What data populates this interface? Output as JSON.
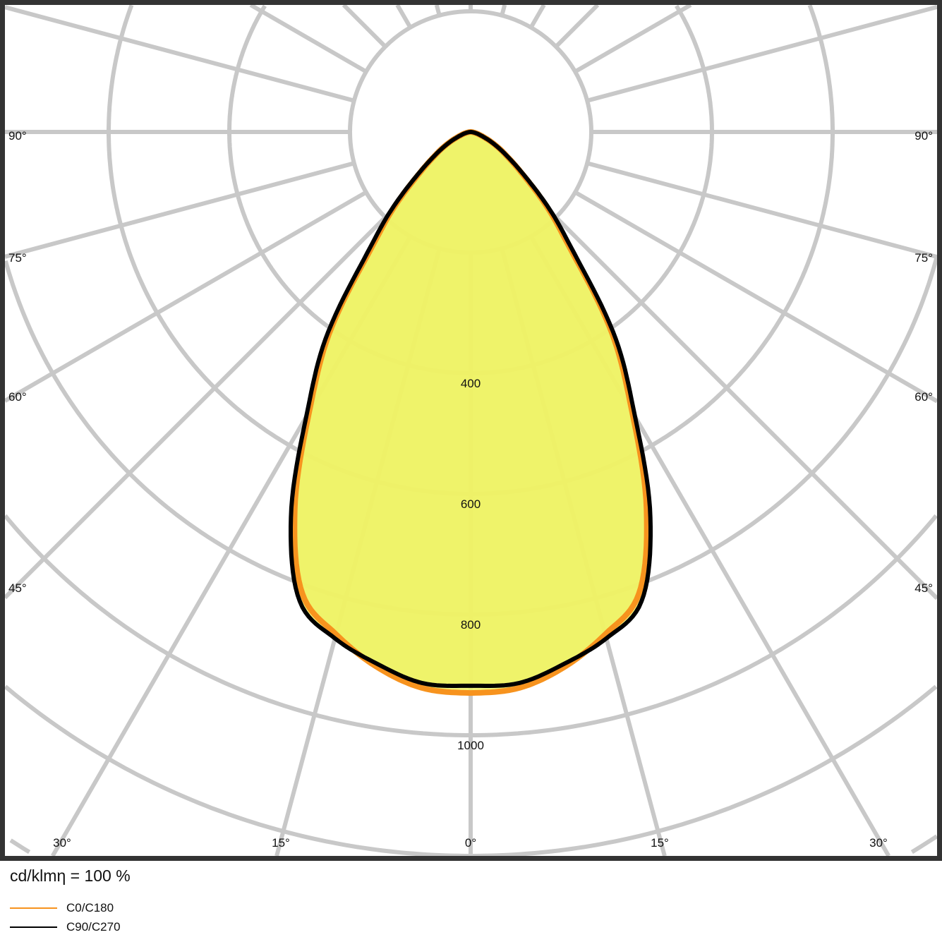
{
  "chart_data": {
    "type": "polar-line",
    "unit": "cd/klm",
    "efficiency_label": "cd/klmη = 100 %",
    "radial_ticks": [
      400,
      600,
      800,
      1000
    ],
    "radial_grid_step": 200,
    "angle_ticks_bottom": [
      "30°",
      "15°",
      "0°",
      "15°",
      "30°"
    ],
    "angle_ticks_side": [
      "90°",
      "75°",
      "60°",
      "45°"
    ],
    "angle_grid_step_deg": 15,
    "fill_color": "#eef266",
    "series": [
      {
        "name": "C0/C180",
        "color": "#f7931e",
        "angles_deg": [
          0,
          5,
          10,
          15,
          20,
          25,
          30,
          35,
          40,
          45,
          50,
          55,
          60,
          65,
          70,
          75,
          80,
          85,
          90
        ],
        "values": [
          930,
          925,
          900,
          862,
          815,
          690,
          535,
          410,
          265,
          185,
          120,
          80,
          55,
          35,
          20,
          12,
          6,
          2,
          0
        ]
      },
      {
        "name": "C90/C270",
        "color": "#000000",
        "angles_deg": [
          0,
          5,
          10,
          15,
          20,
          25,
          30,
          35,
          40,
          45,
          50,
          55,
          60,
          65,
          70,
          75,
          80,
          85,
          90
        ],
        "values": [
          918,
          917,
          895,
          869,
          828,
          705,
          545,
          420,
          275,
          192,
          125,
          82,
          55,
          35,
          20,
          12,
          6,
          2,
          0
        ]
      }
    ]
  }
}
